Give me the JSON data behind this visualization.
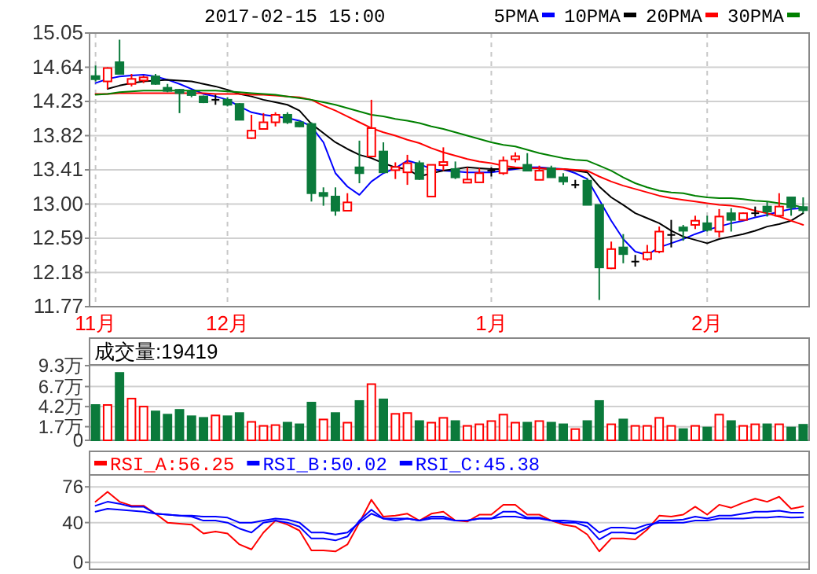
{
  "chart_data": [
    {
      "type": "candlestick",
      "title": "2017-02-15 15:00",
      "legend": "top right",
      "grid": true,
      "categories": [
        "11月",
        null,
        null,
        null,
        null,
        null,
        null,
        null,
        null,
        null,
        null,
        "12月",
        null,
        null,
        null,
        null,
        null,
        null,
        null,
        null,
        null,
        null,
        null,
        null,
        null,
        null,
        null,
        null,
        null,
        null,
        null,
        null,
        null,
        "1月",
        null,
        null,
        null,
        null,
        null,
        null,
        null,
        null,
        null,
        null,
        null,
        null,
        null,
        null,
        null,
        null,
        null,
        "2月",
        null,
        null,
        null,
        null,
        null,
        null,
        null,
        null
      ],
      "ylim": [
        11.77,
        15.05
      ],
      "yticks": [
        15.05,
        14.64,
        14.23,
        13.82,
        13.41,
        {
          "value": 13,
          "label": "13.00"
        },
        12.59,
        12.18,
        11.77
      ],
      "ohlc": [
        [
          14.53,
          14.66,
          14.47,
          14.5
        ],
        [
          14.47,
          14.64,
          14.38,
          14.63
        ],
        [
          14.7,
          14.97,
          14.56,
          14.56
        ],
        [
          14.44,
          14.56,
          14.41,
          14.5
        ],
        [
          14.49,
          14.54,
          14.45,
          14.51
        ],
        [
          14.53,
          14.56,
          14.43,
          14.44
        ],
        [
          14.38,
          14.44,
          14.34,
          14.37
        ],
        [
          14.37,
          14.38,
          14.09,
          14.33
        ],
        [
          14.33,
          14.37,
          14.28,
          14.32
        ],
        [
          14.29,
          14.3,
          14.21,
          14.22
        ],
        [
          14.25,
          14.31,
          14.19,
          14.25
        ],
        [
          14.25,
          14.28,
          14.17,
          14.19
        ],
        [
          14.2,
          14.21,
          14.01,
          14.01
        ],
        [
          13.79,
          14.07,
          13.78,
          13.88
        ],
        [
          13.9,
          14.09,
          13.9,
          13.98
        ],
        [
          13.98,
          14.1,
          13.93,
          14.07
        ],
        [
          14.07,
          14.1,
          13.96,
          13.98
        ],
        [
          13.98,
          14.0,
          13.92,
          13.93
        ],
        [
          13.96,
          13.98,
          13.03,
          13.13
        ],
        [
          13.12,
          13.2,
          12.98,
          13.11
        ],
        [
          13.09,
          13.2,
          12.86,
          12.92
        ],
        [
          12.92,
          13.13,
          12.92,
          13.02
        ],
        [
          13.44,
          13.76,
          13.25,
          13.37
        ],
        [
          13.57,
          14.25,
          13.57,
          13.91
        ],
        [
          13.63,
          13.74,
          13.38,
          13.38
        ],
        [
          13.42,
          13.5,
          13.3,
          13.43
        ],
        [
          13.38,
          13.59,
          13.23,
          13.49
        ],
        [
          13.49,
          13.52,
          13.29,
          13.3
        ],
        [
          13.09,
          13.47,
          13.09,
          13.47
        ],
        [
          13.48,
          13.68,
          13.4,
          13.49
        ],
        [
          13.42,
          13.51,
          13.3,
          13.32
        ],
        [
          13.27,
          13.44,
          13.27,
          13.28
        ],
        [
          13.26,
          13.43,
          13.26,
          13.37
        ],
        [
          13.4,
          13.44,
          13.33,
          13.4
        ],
        [
          13.37,
          13.57,
          13.35,
          13.52
        ],
        [
          13.55,
          13.62,
          13.5,
          13.56
        ],
        [
          13.47,
          13.61,
          13.4,
          13.4
        ],
        [
          13.29,
          13.46,
          13.29,
          13.4
        ],
        [
          13.43,
          13.46,
          13.32,
          13.32
        ],
        [
          13.32,
          13.37,
          13.23,
          13.27
        ],
        [
          13.23,
          13.29,
          13.19,
          13.23
        ],
        [
          13.28,
          13.31,
          12.99,
          12.99
        ],
        [
          12.99,
          12.99,
          11.85,
          12.24
        ],
        [
          12.23,
          12.55,
          12.22,
          12.46
        ],
        [
          12.48,
          12.64,
          12.29,
          12.4
        ],
        [
          12.31,
          12.39,
          12.25,
          12.31
        ],
        [
          12.34,
          12.51,
          12.32,
          12.42
        ],
        [
          12.43,
          12.73,
          12.41,
          12.67
        ],
        [
          12.63,
          12.81,
          12.48,
          12.63
        ],
        [
          12.72,
          12.75,
          12.56,
          12.68
        ],
        [
          12.75,
          12.86,
          12.7,
          12.8
        ],
        [
          12.77,
          12.86,
          12.67,
          12.69
        ],
        [
          12.67,
          12.94,
          12.6,
          12.85
        ],
        [
          12.89,
          12.95,
          12.67,
          12.81
        ],
        [
          12.81,
          12.9,
          12.81,
          12.89
        ],
        [
          12.89,
          12.97,
          12.85,
          12.89
        ],
        [
          12.97,
          13.03,
          12.85,
          12.91
        ],
        [
          12.86,
          13.13,
          12.85,
          12.97
        ],
        [
          13.08,
          13.08,
          12.86,
          12.96
        ],
        [
          12.95,
          13.08,
          12.89,
          12.94
        ]
      ],
      "series": [
        {
          "name": "5PMA",
          "type": "line",
          "color": "#0000ff",
          "values": [
            14.45,
            14.5,
            14.53,
            14.54,
            14.55,
            14.53,
            14.49,
            14.44,
            14.38,
            14.32,
            14.29,
            14.25,
            14.17,
            14.1,
            14.07,
            14.05,
            14.03,
            14.0,
            13.93,
            13.74,
            13.37,
            13.21,
            13.11,
            13.27,
            13.37,
            13.43,
            13.52,
            13.48,
            13.42,
            13.4,
            13.39,
            13.38,
            13.38,
            13.38,
            13.4,
            13.42,
            13.44,
            13.44,
            13.43,
            13.42,
            13.37,
            13.3,
            13.05,
            12.8,
            12.58,
            12.43,
            12.39,
            12.48,
            12.53,
            12.58,
            12.64,
            12.69,
            12.73,
            12.77,
            12.8,
            12.84,
            12.87,
            12.91,
            12.94,
            12.95
          ]
        },
        {
          "name": "10PMA",
          "type": "line",
          "color": "#000000",
          "values": [
            null,
            14.38,
            14.42,
            14.45,
            14.47,
            14.48,
            14.49,
            14.48,
            14.47,
            14.44,
            14.41,
            14.37,
            14.32,
            14.29,
            14.25,
            14.22,
            14.19,
            14.12,
            13.96,
            13.85,
            13.74,
            13.66,
            13.59,
            13.55,
            13.49,
            13.44,
            13.42,
            13.33,
            13.37,
            13.4,
            13.42,
            13.44,
            13.43,
            13.42,
            13.42,
            13.43,
            13.43,
            13.43,
            13.42,
            13.42,
            13.4,
            13.38,
            13.21,
            13.08,
            12.99,
            12.89,
            12.83,
            12.77,
            12.68,
            12.61,
            12.57,
            12.53,
            12.58,
            12.61,
            12.64,
            12.68,
            12.73,
            12.76,
            12.8,
            12.89
          ]
        },
        {
          "name": "20PMA",
          "type": "line",
          "color": "#ff0000",
          "values": [
            14.32,
            14.32,
            14.33,
            14.33,
            14.33,
            14.33,
            14.33,
            14.33,
            14.33,
            14.33,
            14.32,
            14.32,
            14.32,
            14.31,
            14.31,
            14.3,
            14.29,
            14.28,
            14.25,
            14.18,
            14.12,
            14.05,
            13.98,
            13.91,
            13.86,
            13.82,
            13.77,
            13.73,
            13.67,
            13.62,
            13.58,
            13.54,
            13.51,
            13.49,
            13.46,
            13.44,
            13.43,
            13.43,
            13.42,
            13.42,
            13.41,
            13.4,
            13.33,
            13.27,
            13.22,
            13.18,
            13.14,
            13.1,
            13.07,
            13.05,
            13.03,
            13.01,
            12.99,
            12.98,
            12.96,
            12.92,
            12.89,
            12.85,
            12.8,
            12.75
          ]
        },
        {
          "name": "30PMA",
          "type": "line",
          "color": "#008000",
          "values": [
            14.31,
            14.32,
            14.34,
            14.35,
            14.36,
            14.36,
            14.36,
            14.36,
            14.36,
            14.36,
            14.36,
            14.35,
            14.34,
            14.33,
            14.32,
            14.31,
            14.29,
            14.27,
            14.25,
            14.22,
            14.19,
            14.15,
            14.11,
            14.07,
            14.05,
            14.02,
            14.0,
            13.97,
            13.93,
            13.9,
            13.86,
            13.82,
            13.78,
            13.74,
            13.71,
            13.69,
            13.65,
            13.61,
            13.58,
            13.55,
            13.53,
            13.52,
            13.46,
            13.4,
            13.32,
            13.25,
            13.2,
            13.16,
            13.14,
            13.13,
            13.1,
            13.08,
            13.07,
            13.07,
            13.06,
            13.04,
            13.03,
            13.01,
            12.99,
            12.96
          ]
        }
      ]
    },
    {
      "type": "bar",
      "title": "成交量:19419",
      "grid": "y",
      "tick_labels": "y",
      "categories": [
        null,
        null,
        null,
        null,
        null,
        null,
        null,
        null,
        null,
        null,
        null,
        null,
        null,
        null,
        null,
        null,
        null,
        null,
        null,
        null,
        null,
        null,
        null,
        null,
        null,
        null,
        null,
        null,
        null,
        null,
        null,
        null,
        null,
        null,
        null,
        null,
        null,
        null,
        null,
        null,
        null,
        null,
        null,
        null,
        null,
        null,
        null,
        null,
        null,
        null,
        null,
        null,
        null,
        null,
        null,
        null,
        null,
        null,
        null,
        null
      ],
      "ylim": [
        0,
        9.4
      ],
      "yticks": [
        0,
        {
          "value": 1.7,
          "label": "1.7万"
        },
        {
          "value": 4.2,
          "label": "4.2万"
        },
        {
          "value": 6.7,
          "label": "6.7万"
        },
        {
          "value": 9.3,
          "label": "9.3万"
        }
      ],
      "values": [
        4.4,
        4.4,
        8.4,
        5.2,
        4.2,
        3.6,
        3.2,
        3.8,
        3.0,
        2.8,
        3.1,
        3.0,
        3.4,
        2.3,
        1.8,
        1.9,
        2.2,
        2.0,
        4.7,
        2.6,
        3.4,
        2.2,
        4.9,
        7.0,
        5.1,
        3.3,
        3.4,
        2.4,
        2.2,
        2.8,
        2.4,
        1.8,
        2.0,
        2.4,
        3.2,
        2.2,
        2.2,
        2.4,
        2.2,
        2.0,
        1.4,
        2.4,
        4.9,
        2.0,
        2.6,
        1.8,
        1.8,
        2.8,
        1.8,
        1.4,
        1.8,
        1.6,
        3.2,
        2.4,
        1.8,
        2.0,
        2.0,
        2.0,
        1.6,
        1.94
      ],
      "colors": [
        "#0b7a3b",
        "#ff0000",
        "#0b7a3b",
        "#ff0000",
        "#ff0000",
        "#0b7a3b",
        "#0b7a3b",
        "#0b7a3b",
        "#0b7a3b",
        "#0b7a3b",
        "#ff0000",
        "#0b7a3b",
        "#0b7a3b",
        "#ff0000",
        "#ff0000",
        "#ff0000",
        "#0b7a3b",
        "#0b7a3b",
        "#0b7a3b",
        "#ff0000",
        "#0b7a3b",
        "#ff0000",
        "#0b7a3b",
        "#ff0000",
        "#0b7a3b",
        "#ff0000",
        "#ff0000",
        "#0b7a3b",
        "#ff0000",
        "#ff0000",
        "#0b7a3b",
        "#ff0000",
        "#ff0000",
        "#ff0000",
        "#ff0000",
        "#ff0000",
        "#0b7a3b",
        "#ff0000",
        "#0b7a3b",
        "#0b7a3b",
        "#ff0000",
        "#0b7a3b",
        "#0b7a3b",
        "#ff0000",
        "#0b7a3b",
        "#ff0000",
        "#ff0000",
        "#ff0000",
        "#ff0000",
        "#0b7a3b",
        "#ff0000",
        "#0b7a3b",
        "#ff0000",
        "#0b7a3b",
        "#ff0000",
        "#ff0000",
        "#0b7a3b",
        "#ff0000",
        "#0b7a3b",
        "#0b7a3b"
      ]
    },
    {
      "type": "line",
      "legend": "top left",
      "grid": "y",
      "tick_labels": "y",
      "categories": [
        null,
        null,
        null,
        null,
        null,
        null,
        null,
        null,
        null,
        null,
        null,
        null,
        null,
        null,
        null,
        null,
        null,
        null,
        null,
        null,
        null,
        null,
        null,
        null,
        null,
        null,
        null,
        null,
        null,
        null,
        null,
        null,
        null,
        null,
        null,
        null,
        null,
        null,
        null,
        null,
        null,
        null,
        null,
        null,
        null,
        null,
        null,
        null,
        null,
        null,
        null,
        null,
        null,
        null,
        null,
        null,
        null,
        null,
        null,
        null
      ],
      "ylim": [
        -7,
        88
      ],
      "yticks": [
        0,
        40,
        76
      ],
      "series": [
        {
          "name": "RSI_A:56.25",
          "color": "#ff0000",
          "values": [
            61,
            71,
            61,
            57,
            57,
            49,
            40,
            39,
            38,
            29,
            31,
            29,
            18,
            13,
            30,
            42,
            38,
            32,
            12,
            12,
            11,
            18,
            40,
            63,
            46,
            47,
            49,
            42,
            49,
            51,
            42,
            41,
            48,
            48,
            58,
            58,
            48,
            48,
            42,
            38,
            36,
            28,
            11,
            24,
            24,
            23,
            33,
            47,
            46,
            48,
            56,
            48,
            58,
            55,
            60,
            64,
            61,
            66,
            54,
            56.25
          ]
        },
        {
          "name": "RSI_B:50.02",
          "color": "#0000ff",
          "values": [
            57,
            61,
            59,
            56,
            56,
            49,
            48,
            47,
            46,
            42,
            42,
            40,
            34,
            30,
            40,
            42,
            40,
            36,
            24,
            24,
            22,
            26,
            42,
            53,
            44,
            44,
            44,
            42,
            46,
            46,
            42,
            42,
            44,
            44,
            51,
            51,
            45,
            45,
            42,
            40,
            40,
            36,
            23,
            30,
            30,
            29,
            35,
            42,
            42,
            43,
            46,
            44,
            47,
            47,
            49,
            51,
            51,
            52,
            50,
            50.02
          ]
        },
        {
          "name": "RSI_C:45.38",
          "color": "#0000ff",
          "values": [
            51,
            54,
            53,
            52,
            51,
            49,
            48,
            47,
            47,
            46,
            46,
            45,
            40,
            40,
            42,
            44,
            43,
            40,
            30,
            30,
            28,
            30,
            40,
            49,
            44,
            42,
            44,
            42,
            44,
            44,
            42,
            42,
            44,
            44,
            46,
            46,
            44,
            44,
            42,
            42,
            41,
            40,
            30,
            35,
            35,
            34,
            38,
            40,
            40,
            40,
            42,
            42,
            44,
            44,
            44,
            45,
            45,
            46,
            45,
            45.38
          ]
        }
      ]
    }
  ]
}
